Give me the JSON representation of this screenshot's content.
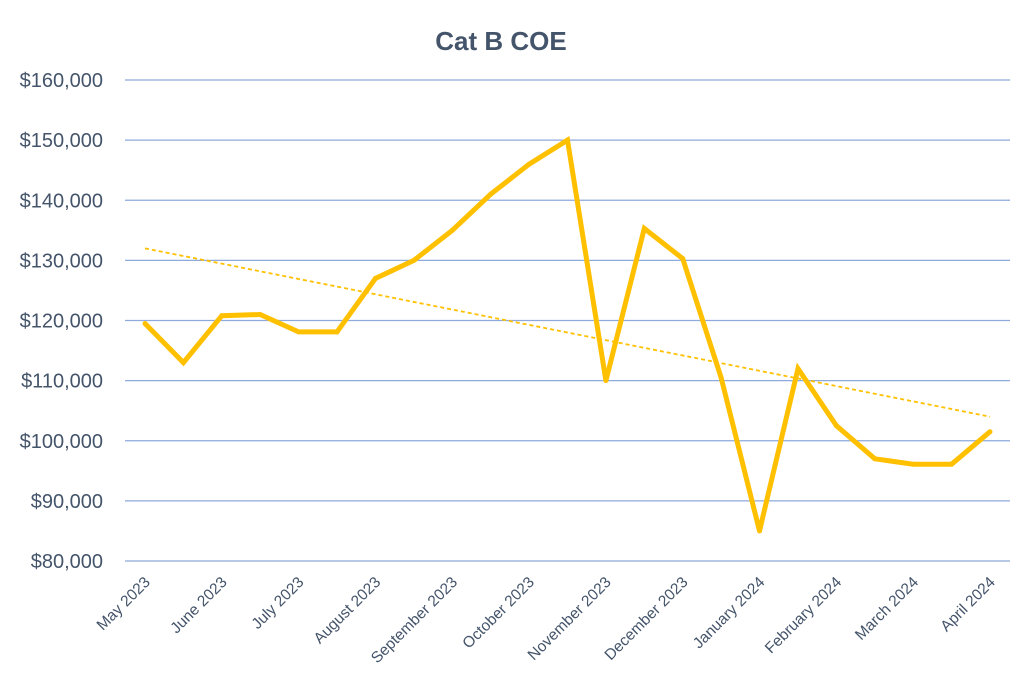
{
  "chart_data": {
    "type": "line",
    "title": "Cat B COE",
    "xlabel": "",
    "ylabel": "",
    "ylim": [
      80000,
      160000
    ],
    "y_ticks": [
      80000,
      90000,
      100000,
      110000,
      120000,
      130000,
      140000,
      150000,
      160000
    ],
    "y_tick_labels": [
      "$80,000",
      "$90,000",
      "$100,000",
      "$110,000",
      "$120,000",
      "$130,000",
      "$140,000",
      "$150,000",
      "$160,000"
    ],
    "x_tick_labels": [
      "May 2023",
      "June 2023",
      "July 2023",
      "August 2023",
      "September 2023",
      "October 2023",
      "November 2023",
      "December 2023",
      "January 2024",
      "February 2024",
      "March 2024",
      "April 2024"
    ],
    "grid": true,
    "legend": "none",
    "series": [
      {
        "values": [
          119500,
          113000,
          120800,
          121000,
          118100,
          118100,
          127000,
          130000,
          135000,
          141000,
          146000,
          150000,
          110000,
          135300,
          130300,
          110500,
          85000,
          112000,
          102500,
          97000,
          96100,
          96100,
          101500
        ],
        "color": "#FFC000"
      }
    ],
    "trendline": {
      "kind": "linear",
      "start_value": 132000,
      "end_value": 104000,
      "color": "#FFC000",
      "dashed": true
    },
    "colors": {
      "gridline": "#8EA9DB",
      "text": "#44546A"
    }
  }
}
